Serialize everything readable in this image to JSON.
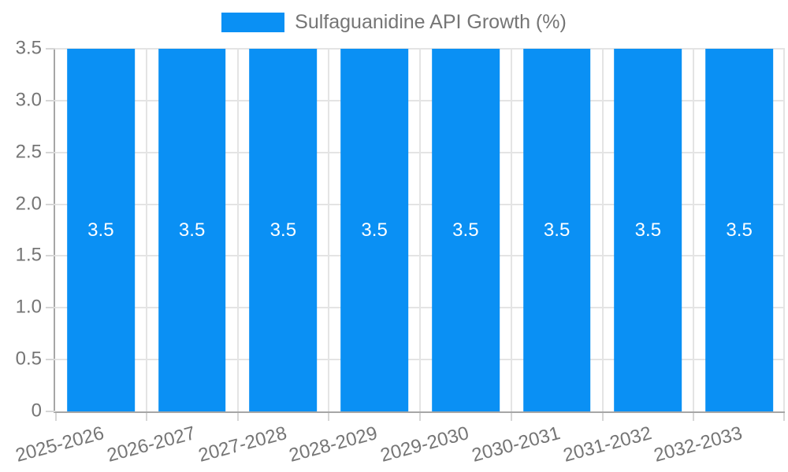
{
  "legend": {
    "label": "Sulfaguanidine API Growth (%)",
    "position": "top-center"
  },
  "chart_data": {
    "type": "bar",
    "title": "",
    "categories": [
      "2025-2026",
      "2026-2027",
      "2027-2028",
      "2028-2029",
      "2029-2030",
      "2030-2031",
      "2031-2032",
      "2032-2033"
    ],
    "series": [
      {
        "name": "Sulfaguanidine API Growth (%)",
        "values": [
          3.5,
          3.5,
          3.5,
          3.5,
          3.5,
          3.5,
          3.5,
          3.5
        ]
      }
    ],
    "data_labels": [
      "3.5",
      "3.5",
      "3.5",
      "3.5",
      "3.5",
      "3.5",
      "3.5",
      "3.5"
    ],
    "xlabel": "",
    "ylabel": "",
    "ylim": [
      0,
      3.5
    ],
    "yticks": {
      "values": [
        0,
        0.5,
        1,
        1.5,
        2,
        2.5,
        3,
        3.5
      ],
      "labels": [
        "0",
        "0.5",
        "1.0",
        "1.5",
        "2.0",
        "2.5",
        "3.0",
        "3.5"
      ]
    },
    "grid": true,
    "legend_position": "top-center",
    "x_label_rotation_deg": -15,
    "bar_width_ratio": 0.74,
    "colors": {
      "bar": "#0A90F4",
      "bar_label": "#FFFFFF",
      "grid": "#E4E4E4",
      "axis": "#A6A6A6",
      "tick": "#D6D6D6",
      "tick_text": "#757575",
      "legend_text": "#757575",
      "background": "#FFFFFF"
    }
  }
}
